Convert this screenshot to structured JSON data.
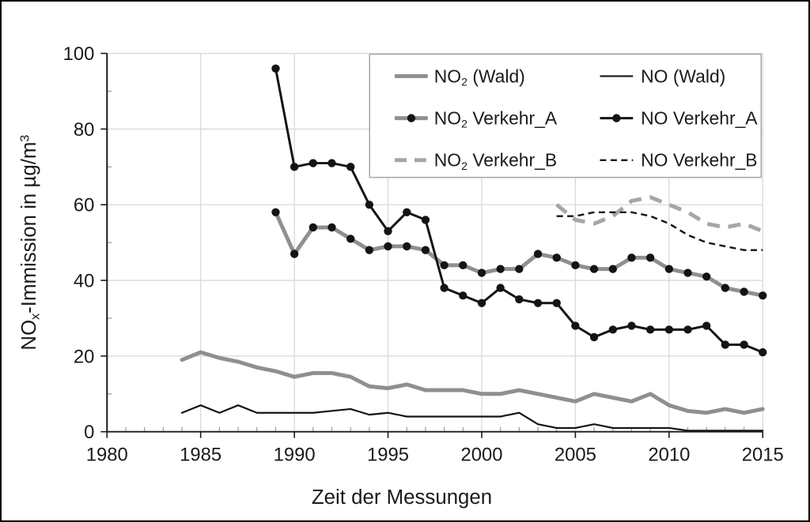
{
  "figure": {
    "background": "#ffffff",
    "border_color": "#000000"
  },
  "chart_data": {
    "type": "line",
    "title": "",
    "xlabel": "Zeit der Messungen",
    "ylabel": "NOₓ-Immission in µg/m³",
    "ylabel_parts": [
      {
        "t": "NO"
      },
      {
        "t": "x",
        "s": "sub"
      },
      {
        "t": "-Immission in µg/m"
      },
      {
        "t": "3",
        "s": "sup"
      }
    ],
    "x_axis": {
      "min": 1980,
      "max": 2015,
      "major_step": 5,
      "minor_step": 1,
      "tick_labels": [
        1980,
        1985,
        1990,
        1995,
        2000,
        2005,
        2010,
        2015
      ]
    },
    "y_axis": {
      "min": 0,
      "max": 100,
      "major_step": 20,
      "minor_step": 10,
      "tick_labels": [
        0,
        20,
        40,
        60,
        80,
        100
      ]
    },
    "grid": true,
    "legend_position": "top-right-inside",
    "colors": {
      "gridline": "#d9d9d9",
      "axis": "#1a1a1a",
      "series_gray": "#8f8f8f",
      "series_gray_dashed": "#a6a6a6",
      "series_black": "#141414",
      "legend_border": "#a6a6a6",
      "legend_background": "#ffffff"
    },
    "series": [
      {
        "id": "no2_wald",
        "label_parts": [
          {
            "t": "NO"
          },
          {
            "t": "2",
            "s": "sub"
          },
          {
            "t": " (Wald)"
          }
        ],
        "color": "#8f8f8f",
        "width": 5,
        "dash": null,
        "marker": false,
        "points": [
          [
            1984,
            19
          ],
          [
            1985,
            21
          ],
          [
            1986,
            19.5
          ],
          [
            1987,
            18.5
          ],
          [
            1988,
            17
          ],
          [
            1989,
            16
          ],
          [
            1990,
            14.5
          ],
          [
            1991,
            15.5
          ],
          [
            1992,
            15.5
          ],
          [
            1993,
            14.5
          ],
          [
            1994,
            12
          ],
          [
            1995,
            11.5
          ],
          [
            1996,
            12.5
          ],
          [
            1997,
            11
          ],
          [
            1998,
            11
          ],
          [
            1999,
            11
          ],
          [
            2000,
            10
          ],
          [
            2001,
            10
          ],
          [
            2002,
            11
          ],
          [
            2003,
            10
          ],
          [
            2004,
            9
          ],
          [
            2005,
            8
          ],
          [
            2006,
            10
          ],
          [
            2007,
            9
          ],
          [
            2008,
            8
          ],
          [
            2009,
            10
          ],
          [
            2010,
            7
          ],
          [
            2011,
            5.5
          ],
          [
            2012,
            5
          ],
          [
            2013,
            6
          ],
          [
            2014,
            5
          ],
          [
            2015,
            6
          ]
        ]
      },
      {
        "id": "no_wald",
        "label_parts": [
          {
            "t": "NO (Wald)"
          }
        ],
        "color": "#141414",
        "width": 2.2,
        "dash": null,
        "marker": false,
        "points": [
          [
            1984,
            5
          ],
          [
            1985,
            7
          ],
          [
            1986,
            5
          ],
          [
            1987,
            7
          ],
          [
            1988,
            5
          ],
          [
            1989,
            5
          ],
          [
            1990,
            5
          ],
          [
            1991,
            5
          ],
          [
            1992,
            5.5
          ],
          [
            1993,
            6
          ],
          [
            1994,
            4.5
          ],
          [
            1995,
            5
          ],
          [
            1996,
            4
          ],
          [
            1997,
            4
          ],
          [
            1998,
            4
          ],
          [
            1999,
            4
          ],
          [
            2000,
            4
          ],
          [
            2001,
            4
          ],
          [
            2002,
            5
          ],
          [
            2003,
            2
          ],
          [
            2004,
            1
          ],
          [
            2005,
            1
          ],
          [
            2006,
            2
          ],
          [
            2007,
            1
          ],
          [
            2008,
            1
          ],
          [
            2009,
            1
          ],
          [
            2010,
            1
          ],
          [
            2011,
            0.3
          ],
          [
            2012,
            0.3
          ],
          [
            2013,
            0.3
          ],
          [
            2014,
            0.3
          ],
          [
            2015,
            0.3
          ]
        ]
      },
      {
        "id": "no2_verkehr_a",
        "label_parts": [
          {
            "t": "NO"
          },
          {
            "t": "2",
            "s": "sub"
          },
          {
            "t": " Verkehr_A"
          }
        ],
        "color": "#8f8f8f",
        "width": 5,
        "dash": null,
        "marker": true,
        "marker_color": "#141414",
        "points": [
          [
            1989,
            58
          ],
          [
            1990,
            47
          ],
          [
            1991,
            54
          ],
          [
            1992,
            54
          ],
          [
            1993,
            51
          ],
          [
            1994,
            48
          ],
          [
            1995,
            49
          ],
          [
            1996,
            49
          ],
          [
            1997,
            48
          ],
          [
            1998,
            44
          ],
          [
            1999,
            44
          ],
          [
            2000,
            42
          ],
          [
            2001,
            43
          ],
          [
            2002,
            43
          ],
          [
            2003,
            47
          ],
          [
            2004,
            46
          ],
          [
            2005,
            44
          ],
          [
            2006,
            43
          ],
          [
            2007,
            43
          ],
          [
            2008,
            46
          ],
          [
            2009,
            46
          ],
          [
            2010,
            43
          ],
          [
            2011,
            42
          ],
          [
            2012,
            41
          ],
          [
            2013,
            38
          ],
          [
            2014,
            37
          ],
          [
            2015,
            36
          ]
        ]
      },
      {
        "id": "no_verkehr_a",
        "label_parts": [
          {
            "t": "NO Verkehr_A"
          }
        ],
        "color": "#141414",
        "width": 3,
        "dash": null,
        "marker": true,
        "marker_color": "#141414",
        "points": [
          [
            1989,
            96
          ],
          [
            1990,
            70
          ],
          [
            1991,
            71
          ],
          [
            1992,
            71
          ],
          [
            1993,
            70
          ],
          [
            1994,
            60
          ],
          [
            1995,
            53
          ],
          [
            1996,
            58
          ],
          [
            1997,
            56
          ],
          [
            1998,
            38
          ],
          [
            1999,
            36
          ],
          [
            2000,
            34
          ],
          [
            2001,
            38
          ],
          [
            2002,
            35
          ],
          [
            2003,
            34
          ],
          [
            2004,
            34
          ],
          [
            2005,
            28
          ],
          [
            2006,
            25
          ],
          [
            2007,
            27
          ],
          [
            2008,
            28
          ],
          [
            2009,
            27
          ],
          [
            2010,
            27
          ],
          [
            2011,
            27
          ],
          [
            2012,
            28
          ],
          [
            2013,
            23
          ],
          [
            2014,
            23
          ],
          [
            2015,
            21
          ]
        ]
      },
      {
        "id": "no2_verkehr_b",
        "label_parts": [
          {
            "t": "NO"
          },
          {
            "t": "2",
            "s": "sub"
          },
          {
            "t": " Verkehr_B"
          }
        ],
        "color": "#a6a6a6",
        "width": 5,
        "dash": "16 11",
        "marker": false,
        "points": [
          [
            2004,
            60
          ],
          [
            2005,
            56
          ],
          [
            2006,
            55
          ],
          [
            2007,
            57
          ],
          [
            2008,
            61
          ],
          [
            2009,
            62
          ],
          [
            2010,
            60
          ],
          [
            2011,
            58
          ],
          [
            2012,
            55
          ],
          [
            2013,
            54
          ],
          [
            2014,
            55
          ],
          [
            2015,
            53
          ]
        ]
      },
      {
        "id": "no_verkehr_b",
        "label_parts": [
          {
            "t": "NO Verkehr_B"
          }
        ],
        "color": "#141414",
        "width": 2.4,
        "dash": "8 5.5",
        "marker": false,
        "points": [
          [
            2004,
            57
          ],
          [
            2005,
            57
          ],
          [
            2006,
            58
          ],
          [
            2007,
            58
          ],
          [
            2008,
            58
          ],
          [
            2009,
            57
          ],
          [
            2010,
            55
          ],
          [
            2011,
            52
          ],
          [
            2012,
            50
          ],
          [
            2013,
            49
          ],
          [
            2014,
            48
          ],
          [
            2015,
            48
          ]
        ]
      }
    ],
    "legend": {
      "columns": [
        [
          "no2_wald",
          "no2_verkehr_a",
          "no2_verkehr_b"
        ],
        [
          "no_wald",
          "no_verkehr_a",
          "no_verkehr_b"
        ]
      ]
    }
  }
}
